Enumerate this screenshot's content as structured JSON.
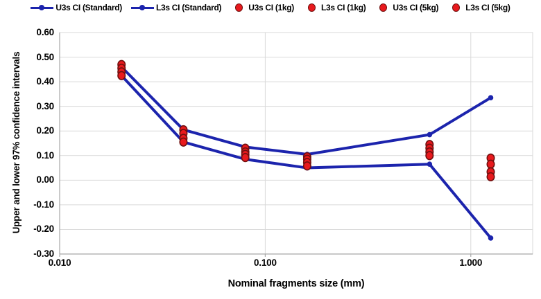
{
  "colors": {
    "blue": "#1C24AD",
    "red": "#E8191D",
    "dark_red": "#70100F",
    "grid": "#D9D9D9",
    "axis": "#A6A6A6",
    "text": "#000000"
  },
  "legend": {
    "items": [
      {
        "label": "U3s CI (Standard)",
        "marker": "line"
      },
      {
        "label": "L3s CI (Standard)",
        "marker": "line"
      },
      {
        "label": "U3s CI (1kg)",
        "marker": "dot"
      },
      {
        "label": "L3s CI (1kg)",
        "marker": "dot"
      },
      {
        "label": "U3s CI (5kg)",
        "marker": "dot"
      },
      {
        "label": "L3s CI (5kg)",
        "marker": "dot"
      }
    ]
  },
  "chart_data": {
    "type": "line",
    "title": "",
    "xlabel": "Nominal fragments size (mm)",
    "ylabel": "Upper and lower 97% confidence intervals",
    "x_scale": "log",
    "xlim": [
      0.01,
      2.0
    ],
    "ylim": [
      -0.3,
      0.6
    ],
    "grid": true,
    "legend_position": "top",
    "x_ticks": [
      {
        "v": 0.01,
        "label": "0.010"
      },
      {
        "v": 0.1,
        "label": "0.100"
      },
      {
        "v": 1.0,
        "label": "1.000"
      }
    ],
    "y_ticks": [
      {
        "v": 0.6,
        "label": "0.60"
      },
      {
        "v": 0.5,
        "label": "0.50"
      },
      {
        "v": 0.4,
        "label": "0.40"
      },
      {
        "v": 0.3,
        "label": "0.30"
      },
      {
        "v": 0.2,
        "label": "0.20"
      },
      {
        "v": 0.1,
        "label": "0.10"
      },
      {
        "v": 0.0,
        "label": "0.00"
      },
      {
        "v": -0.1,
        "label": "-0.10"
      },
      {
        "v": -0.2,
        "label": "-0.20"
      },
      {
        "v": -0.3,
        "label": "-0.30"
      }
    ],
    "x": [
      0.02,
      0.04,
      0.08,
      0.16,
      0.63,
      1.25
    ],
    "series": [
      {
        "name": "U3s CI (Standard)",
        "type": "line",
        "values": [
          0.46,
          0.205,
          0.135,
          0.105,
          0.185,
          0.335
        ]
      },
      {
        "name": "L3s CI (Standard)",
        "type": "line",
        "values": [
          0.425,
          0.155,
          0.085,
          0.05,
          0.065,
          -0.235
        ]
      },
      {
        "name": "U3s CI (1kg)",
        "type": "scatter",
        "values": [
          0.47,
          0.205,
          0.13,
          0.095,
          0.145,
          0.09
        ]
      },
      {
        "name": "L3s CI (1kg)",
        "type": "scatter",
        "values": [
          0.455,
          0.19,
          0.115,
          0.085,
          0.13,
          0.065
        ]
      },
      {
        "name": "U3s CI (5kg)",
        "type": "scatter",
        "values": [
          0.44,
          0.17,
          0.105,
          0.072,
          0.115,
          0.034
        ]
      },
      {
        "name": "L3s CI (5kg)",
        "type": "scatter",
        "values": [
          0.425,
          0.155,
          0.092,
          0.058,
          0.1,
          0.014
        ]
      }
    ]
  }
}
